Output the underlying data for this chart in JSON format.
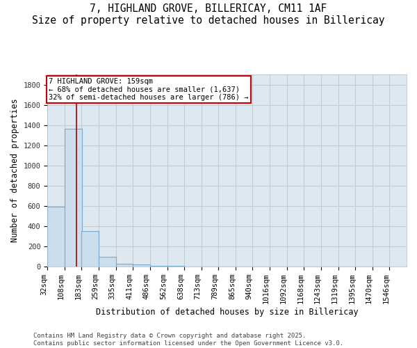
{
  "title_line1": "7, HIGHLAND GROVE, BILLERICAY, CM11 1AF",
  "title_line2": "Size of property relative to detached houses in Billericay",
  "xlabel": "Distribution of detached houses by size in Billericay",
  "ylabel": "Number of detached properties",
  "bar_edges": [
    32,
    108,
    183,
    259,
    335,
    411,
    486,
    562,
    638,
    713,
    789,
    865,
    940,
    1016,
    1092,
    1168,
    1243,
    1319,
    1395,
    1470,
    1546
  ],
  "bar_heights": [
    590,
    1365,
    350,
    95,
    30,
    20,
    10,
    5,
    2,
    1,
    1,
    0,
    0,
    0,
    0,
    0,
    0,
    0,
    0,
    0
  ],
  "bar_color": "#ccdded",
  "bar_edgecolor": "#7aaac8",
  "bar_linewidth": 0.8,
  "vline_x": 159,
  "vline_color": "#aa0000",
  "vline_linewidth": 1.2,
  "annotation_text": "7 HIGHLAND GROVE: 159sqm\n← 68% of detached houses are smaller (1,637)\n32% of semi-detached houses are larger (786) →",
  "annotation_box_color": "#ffffff",
  "annotation_edge_color": "#cc0000",
  "ylim": [
    0,
    1900
  ],
  "yticks": [
    0,
    200,
    400,
    600,
    800,
    1000,
    1200,
    1400,
    1600,
    1800
  ],
  "fig_bg_color": "#ffffff",
  "plot_bg_color": "#dde8f0",
  "grid_color": "#c0ccd8",
  "footer_line1": "Contains HM Land Registry data © Crown copyright and database right 2025.",
  "footer_line2": "Contains public sector information licensed under the Open Government Licence v3.0.",
  "title_fontsize": 10.5,
  "axis_label_fontsize": 8.5,
  "tick_fontsize": 7.5,
  "annotation_fontsize": 7.5,
  "footer_fontsize": 6.5
}
